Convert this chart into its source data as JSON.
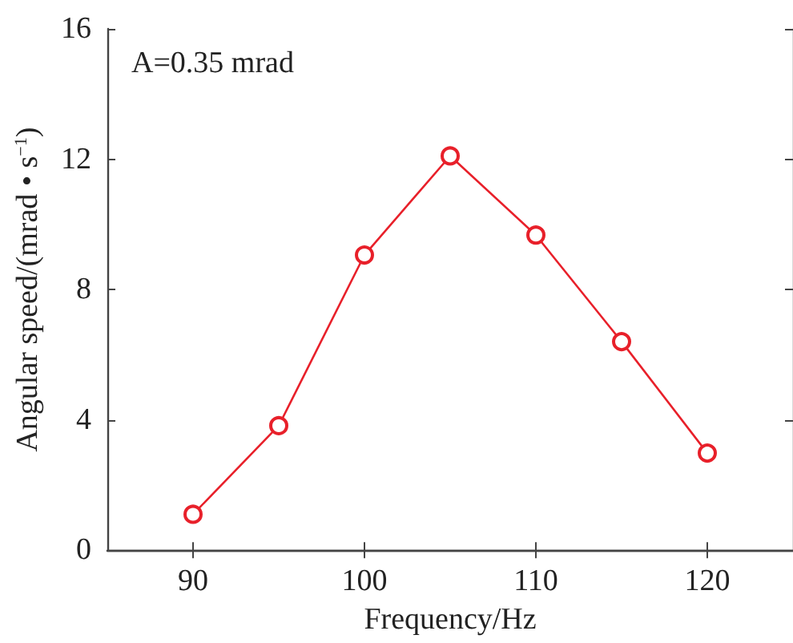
{
  "chart_data": {
    "type": "line",
    "xlabel": "Frequency/Hz",
    "ylabel": "Angular speed/(mrad • s$^{−1}$)",
    "annotations": [
      "A=0.35 mrad"
    ],
    "x": [
      90,
      95,
      100,
      105,
      110,
      115,
      120
    ],
    "series": [
      {
        "color": "#e8202a",
        "values": [
          1.1,
          3.82,
          9.06,
          12.1,
          9.67,
          6.4,
          2.98
        ]
      }
    ],
    "xlim": [
      85,
      125
    ],
    "xticks": [
      90,
      100,
      110,
      120
    ],
    "ylim": [
      0,
      16
    ],
    "yticks": [
      0,
      4,
      8,
      12,
      16
    ],
    "marker": "circle",
    "line_style": "solid"
  }
}
